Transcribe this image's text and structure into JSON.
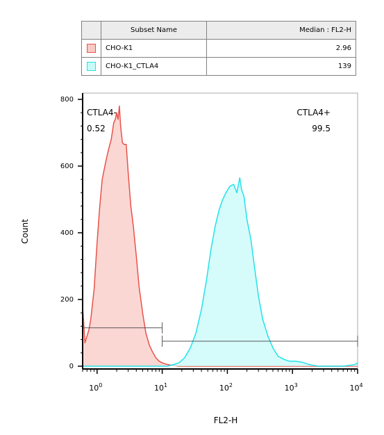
{
  "legend": {
    "header_name": "Subset Name",
    "header_value": "Median : FL2-H",
    "rows": [
      {
        "name": "CHO-K1",
        "value": "2.96",
        "fill": "#f9c9c4",
        "stroke": "#e8524a"
      },
      {
        "name": "CHO-K1_CTLA4",
        "value": "139",
        "fill": "#c8fafa",
        "stroke": "#22e2e8"
      }
    ]
  },
  "chart_data": {
    "type": "area",
    "xlabel": "FL2-H",
    "ylabel": "Count",
    "x_scale": "log",
    "xlim": [
      0.6,
      10000
    ],
    "ylim": [
      0,
      800
    ],
    "x_ticks": [
      {
        "value": 1,
        "base": "10",
        "exp": "0"
      },
      {
        "value": 10,
        "base": "10",
        "exp": "1"
      },
      {
        "value": 100,
        "base": "10",
        "exp": "2"
      },
      {
        "value": 1000,
        "base": "10",
        "exp": "3"
      },
      {
        "value": 10000,
        "base": "10",
        "exp": "4"
      }
    ],
    "y_ticks": [
      "0",
      "200",
      "400",
      "600",
      "800"
    ],
    "series": [
      {
        "name": "CHO-K1",
        "stroke": "#e8524a",
        "fill": "#f9c9c4",
        "x": [
          0.6,
          0.62,
          0.65,
          0.7,
          0.75,
          0.8,
          0.9,
          1.0,
          1.1,
          1.2,
          1.35,
          1.5,
          1.65,
          1.8,
          1.9,
          2.0,
          2.1,
          2.2,
          2.3,
          2.45,
          2.6,
          2.8,
          3.0,
          3.3,
          3.6,
          4.0,
          4.4,
          5.0,
          5.6,
          6.3,
          7.0,
          8.0,
          9.0,
          10,
          11.5,
          13,
          15,
          18,
          25,
          10000
        ],
        "y": [
          175,
          140,
          70,
          90,
          110,
          140,
          230,
          370,
          480,
          560,
          610,
          650,
          680,
          730,
          740,
          760,
          740,
          780,
          720,
          670,
          665,
          665,
          580,
          480,
          420,
          330,
          240,
          160,
          100,
          65,
          45,
          25,
          15,
          10,
          6,
          4,
          2,
          0,
          0,
          0
        ]
      },
      {
        "name": "CHO-K1_CTLA4",
        "stroke": "#22e2e8",
        "fill": "#c8fafa",
        "x": [
          0.6,
          12,
          15,
          18,
          22,
          27,
          33,
          40,
          48,
          56,
          65,
          75,
          85,
          95,
          110,
          125,
          140,
          155,
          165,
          180,
          200,
          230,
          260,
          300,
          350,
          420,
          500,
          600,
          750,
          900,
          1100,
          1400,
          1800,
          2500,
          4000,
          6000,
          9000,
          10000
        ],
        "y": [
          0,
          0,
          5,
          10,
          25,
          55,
          100,
          170,
          260,
          350,
          420,
          470,
          500,
          520,
          540,
          545,
          520,
          565,
          530,
          510,
          440,
          380,
          300,
          210,
          140,
          90,
          55,
          30,
          20,
          15,
          15,
          12,
          5,
          0,
          0,
          0,
          5,
          10
        ]
      }
    ],
    "gates": [
      {
        "label": "CTLA4-",
        "value": "0.52",
        "x_from": 0.6,
        "x_to": 10,
        "y": 115
      },
      {
        "label": "CTLA4+",
        "value": "99.5",
        "x_from": 10,
        "x_to": 10000,
        "y": 75
      }
    ]
  }
}
